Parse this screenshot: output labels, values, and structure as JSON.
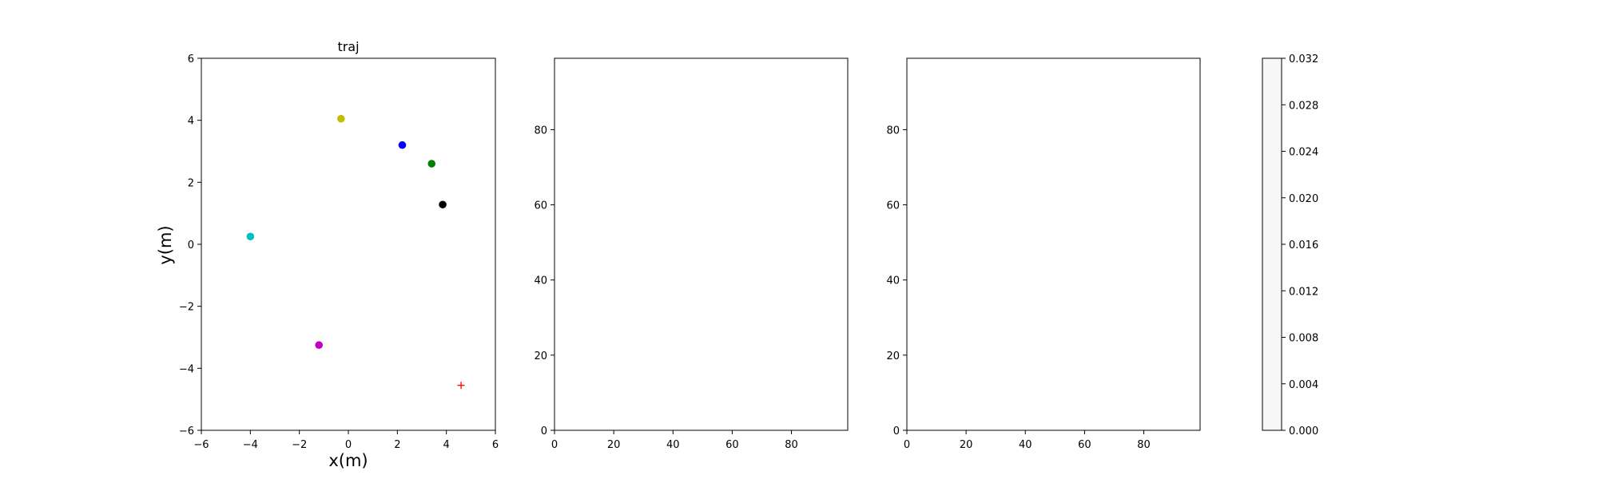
{
  "chart_data": [
    {
      "type": "scatter",
      "title": "traj",
      "xlabel": "x(m)",
      "ylabel": "y(m)",
      "xlim": [
        -6,
        6
      ],
      "ylim": [
        -6,
        6
      ],
      "xticks": [
        -6,
        -4,
        -2,
        0,
        2,
        4,
        6
      ],
      "yticks": [
        -6,
        -4,
        -2,
        0,
        2,
        4,
        6
      ],
      "grid": false,
      "points": [
        {
          "x": -0.3,
          "y": 4.05,
          "color": "#bfbf00",
          "marker": "circle"
        },
        {
          "x": 2.2,
          "y": 3.2,
          "color": "#0000ff",
          "marker": "circle"
        },
        {
          "x": 3.4,
          "y": 2.6,
          "color": "#008000",
          "marker": "circle"
        },
        {
          "x": 3.85,
          "y": 1.28,
          "color": "#000000",
          "marker": "circle"
        },
        {
          "x": -4.0,
          "y": 0.25,
          "color": "#00bfbf",
          "marker": "circle"
        },
        {
          "x": -1.2,
          "y": -3.25,
          "color": "#bf00bf",
          "marker": "circle"
        },
        {
          "x": 4.6,
          "y": -4.55,
          "color": "#ff0000",
          "marker": "plus"
        }
      ]
    },
    {
      "type": "heatmap",
      "title": "",
      "xlim": [
        0,
        99
      ],
      "ylim": [
        0,
        99
      ],
      "xticks": [
        0,
        20,
        40,
        60,
        80
      ],
      "yticks": [
        0,
        20,
        40,
        60,
        80
      ],
      "values": []
    },
    {
      "type": "heatmap",
      "title": "",
      "xlim": [
        0,
        99
      ],
      "ylim": [
        0,
        99
      ],
      "xticks": [
        0,
        20,
        40,
        60,
        80
      ],
      "yticks": [
        0,
        20,
        40,
        60,
        80
      ],
      "values": []
    }
  ],
  "colorbar": {
    "range": [
      0,
      0.032
    ],
    "ticks": [
      "0.000",
      "0.004",
      "0.008",
      "0.012",
      "0.016",
      "0.020",
      "0.024",
      "0.028",
      "0.032"
    ],
    "fill_color": "#f7f7f7"
  }
}
